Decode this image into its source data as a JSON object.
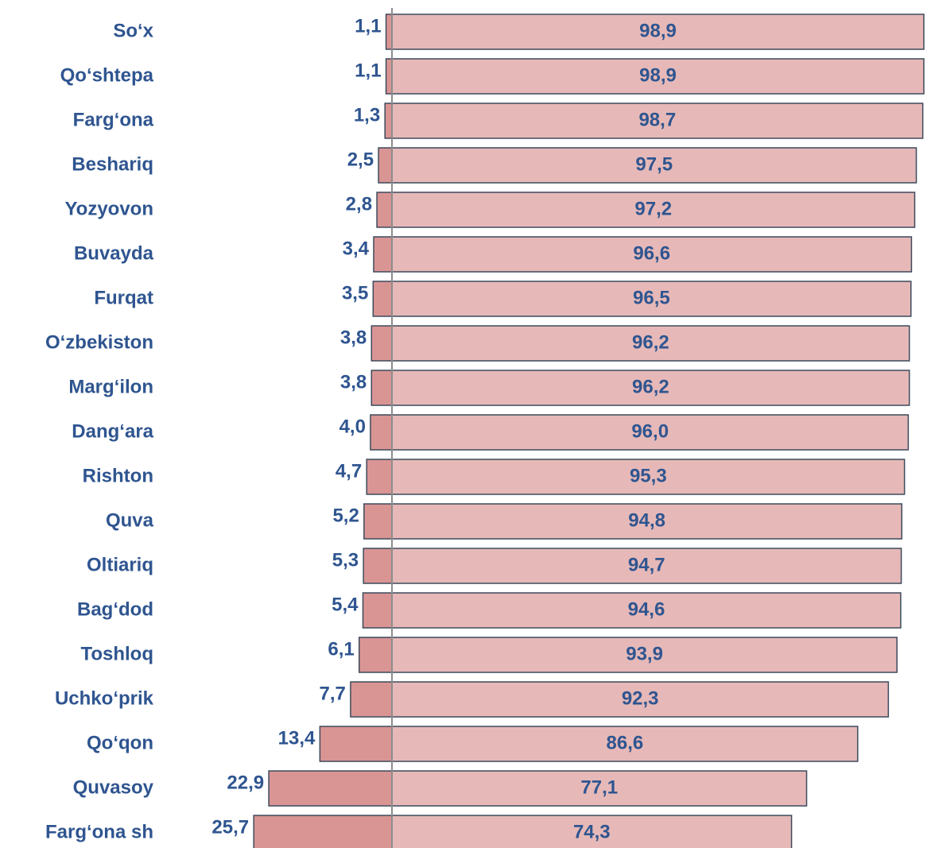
{
  "chart_data": {
    "type": "diverging-bar",
    "categories": [
      "So‘x",
      "Qo‘shtepa",
      "Farg‘ona",
      "Beshariq",
      "Yozyovon",
      "Buvayda",
      "Furqat",
      "O‘zbekiston",
      "Marg‘ilon",
      "Dang‘ara",
      "Rishton",
      "Quva",
      "Oltiariq",
      "Bag‘dod",
      "Toshloq",
      "Uchko‘prik",
      "Qo‘qon",
      "Quvasoy",
      "Farg‘ona sh"
    ],
    "series": [
      {
        "color": "#d99594",
        "values": [
          1.1,
          1.1,
          1.3,
          2.5,
          2.8,
          3.4,
          3.5,
          3.8,
          3.8,
          4.0,
          4.7,
          5.2,
          5.3,
          5.4,
          6.1,
          7.7,
          13.4,
          22.9,
          25.7
        ],
        "value_labels": [
          "1,1",
          "1,1",
          "1,3",
          "2,5",
          "2,8",
          "3,4",
          "3,5",
          "3,8",
          "3,8",
          "4,0",
          "4,7",
          "5,2",
          "5,3",
          "5,4",
          "6,1",
          "7,7",
          "13,4",
          "22,9",
          "25,7"
        ]
      },
      {
        "color": "#e6b9b8",
        "values": [
          98.9,
          98.9,
          98.7,
          97.5,
          97.2,
          96.6,
          96.5,
          96.2,
          96.2,
          96.0,
          95.3,
          94.8,
          94.7,
          94.6,
          93.9,
          92.3,
          86.6,
          77.1,
          74.3
        ],
        "value_labels": [
          "98,9",
          "98,9",
          "98,7",
          "97,5",
          "97,2",
          "96,6",
          "96,5",
          "96,2",
          "96,2",
          "96,0",
          "95,3",
          "94,8",
          "94,7",
          "94,6",
          "93,9",
          "92,3",
          "86,6",
          "77,1",
          "74,3"
        ]
      }
    ]
  }
}
